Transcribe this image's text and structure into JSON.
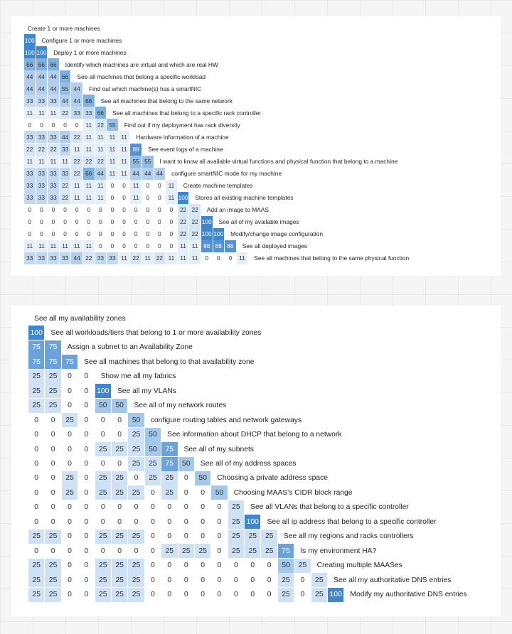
{
  "chart_data": [
    {
      "type": "heatmap",
      "title": "",
      "rows": [
        {
          "label": "Create 1 or more machines",
          "values": []
        },
        {
          "label": "Configure 1 or more machines",
          "values": [
            100
          ]
        },
        {
          "label": "Deploy 1 or more machines",
          "values": [
            100,
            100
          ]
        },
        {
          "label": "Identify which machines are virtual and which are real HW",
          "values": [
            66,
            66,
            66
          ]
        },
        {
          "label": "See all machines that belong a specific workload",
          "values": [
            44,
            44,
            44,
            66
          ]
        },
        {
          "label": "Find out which machine(s) has a smartNIC",
          "values": [
            44,
            44,
            44,
            55,
            44
          ]
        },
        {
          "label": "See all machines that belong to the same network",
          "values": [
            33,
            33,
            33,
            44,
            44,
            66
          ]
        },
        {
          "label": "See all machines that belong to a specific rack controller",
          "values": [
            11,
            11,
            11,
            22,
            33,
            33,
            66
          ]
        },
        {
          "label": "Find out if my deployment has rack diversity",
          "values": [
            0,
            0,
            0,
            0,
            0,
            11,
            22,
            55
          ]
        },
        {
          "label": "Hardware information of a machine",
          "values": [
            33,
            33,
            33,
            44,
            22,
            11,
            11,
            11,
            11
          ]
        },
        {
          "label": "See event logs of a machine",
          "values": [
            22,
            22,
            22,
            33,
            11,
            11,
            11,
            11,
            11,
            88
          ]
        },
        {
          "label": "I want to know all available virtual functions and physical function that belong to a machine",
          "values": [
            11,
            11,
            11,
            11,
            22,
            22,
            22,
            11,
            11,
            55,
            55
          ]
        },
        {
          "label": "configure smartNIC mode for my machine",
          "values": [
            33,
            33,
            33,
            33,
            22,
            66,
            44,
            11,
            11,
            44,
            44,
            44
          ]
        },
        {
          "label": "Create machine templates",
          "values": [
            33,
            33,
            33,
            22,
            11,
            11,
            11,
            0,
            0,
            11,
            0,
            0,
            11
          ]
        },
        {
          "label": "Stores all existing machine templates",
          "values": [
            33,
            33,
            33,
            22,
            11,
            11,
            11,
            0,
            0,
            11,
            0,
            0,
            11,
            100
          ]
        },
        {
          "label": "Add an image to MAAS",
          "values": [
            0,
            0,
            0,
            0,
            0,
            0,
            0,
            0,
            0,
            0,
            0,
            0,
            0,
            22,
            22
          ]
        },
        {
          "label": "See all of my available images",
          "values": [
            0,
            0,
            0,
            0,
            0,
            0,
            0,
            0,
            0,
            0,
            0,
            0,
            0,
            22,
            22,
            100
          ]
        },
        {
          "label": "Modify/change image configuration",
          "values": [
            0,
            0,
            0,
            0,
            0,
            0,
            0,
            0,
            0,
            0,
            0,
            0,
            0,
            22,
            22,
            100,
            100
          ]
        },
        {
          "label": "See all deployed images",
          "values": [
            11,
            11,
            11,
            11,
            11,
            11,
            0,
            0,
            0,
            0,
            0,
            0,
            0,
            11,
            11,
            88,
            88,
            88
          ]
        },
        {
          "label": "See all machines that belong to the same physical function",
          "values": [
            33,
            33,
            33,
            33,
            44,
            22,
            33,
            33,
            11,
            22,
            11,
            22,
            11,
            11,
            11,
            0,
            0,
            0,
            11
          ]
        }
      ]
    },
    {
      "type": "heatmap",
      "title": "",
      "rows": [
        {
          "label": "See all my availability zones",
          "values": []
        },
        {
          "label": "See all workloads/tiers that belong to 1 or more availability zones",
          "values": [
            100
          ]
        },
        {
          "label": "Assign a subnet to an Availability Zone",
          "values": [
            75,
            75
          ]
        },
        {
          "label": "See all machines that belong to that availability zone",
          "values": [
            75,
            75,
            75
          ]
        },
        {
          "label": "Show me all my fabrics",
          "values": [
            25,
            25,
            0,
            0
          ]
        },
        {
          "label": "See all my VLANs",
          "values": [
            25,
            25,
            0,
            0,
            100
          ]
        },
        {
          "label": "See all of my network routes",
          "values": [
            25,
            25,
            0,
            0,
            50,
            50
          ]
        },
        {
          "label": "configure routing tables and network gateways",
          "values": [
            0,
            0,
            25,
            0,
            0,
            0,
            50
          ]
        },
        {
          "label": "See information about DHCP that belong to a network",
          "values": [
            0,
            0,
            0,
            0,
            0,
            0,
            25,
            50
          ]
        },
        {
          "label": "See all of my subnets",
          "values": [
            0,
            0,
            0,
            0,
            25,
            25,
            25,
            50,
            75
          ]
        },
        {
          "label": "See all of my address spaces",
          "values": [
            0,
            0,
            0,
            0,
            0,
            0,
            25,
            25,
            75,
            50
          ]
        },
        {
          "label": "Choosing a private address space",
          "values": [
            0,
            0,
            25,
            0,
            25,
            25,
            0,
            25,
            25,
            0,
            50
          ]
        },
        {
          "label": "Choosing MAAS's CIDR block range",
          "values": [
            0,
            0,
            25,
            0,
            25,
            25,
            25,
            0,
            25,
            0,
            0,
            50
          ]
        },
        {
          "label": "See all VLANs that belong to a specific controller",
          "values": [
            0,
            0,
            0,
            0,
            0,
            0,
            0,
            0,
            0,
            0,
            0,
            0,
            25
          ]
        },
        {
          "label": "See all ip address that belong to a specific controller",
          "values": [
            0,
            0,
            0,
            0,
            0,
            0,
            0,
            0,
            0,
            0,
            0,
            0,
            25,
            100
          ]
        },
        {
          "label": "See all my regions and racks controllers",
          "values": [
            25,
            25,
            0,
            0,
            25,
            25,
            25,
            0,
            0,
            0,
            0,
            0,
            25,
            25,
            25
          ]
        },
        {
          "label": "Is my environment HA?",
          "values": [
            0,
            0,
            0,
            0,
            0,
            0,
            0,
            0,
            25,
            25,
            25,
            0,
            25,
            25,
            25,
            75
          ]
        },
        {
          "label": "Creating multiple MAASes",
          "values": [
            25,
            25,
            0,
            0,
            25,
            25,
            25,
            0,
            0,
            0,
            0,
            0,
            0,
            0,
            0,
            50,
            25
          ]
        },
        {
          "label": "See all my authoritative DNS entries",
          "values": [
            25,
            25,
            0,
            0,
            25,
            25,
            25,
            0,
            0,
            0,
            0,
            0,
            0,
            0,
            0,
            25,
            0,
            25
          ]
        },
        {
          "label": "Modify my authoritative DNS entries",
          "values": [
            25,
            25,
            0,
            0,
            25,
            25,
            25,
            0,
            0,
            0,
            0,
            0,
            0,
            0,
            0,
            25,
            0,
            25,
            100
          ]
        }
      ]
    }
  ]
}
